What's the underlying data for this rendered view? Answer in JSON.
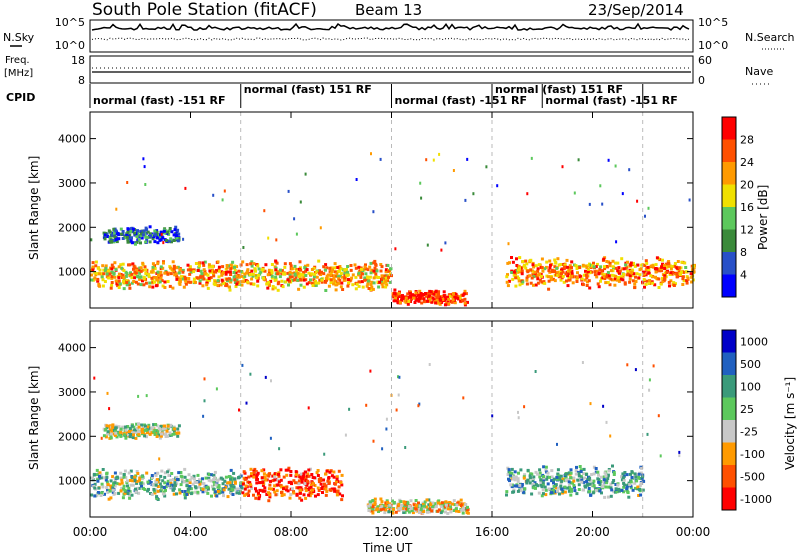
{
  "header": {
    "title": "South Pole Station (fitACF)",
    "beam": "Beam 13",
    "date": "23/Sep/2014"
  },
  "left_labels": {
    "nsky": "N.Sky",
    "freq": "Freq.",
    "mhz": "[MHz]",
    "cpid": "CPID"
  },
  "right_labels": {
    "nsearch": "N.Search",
    "nave": "Nave"
  },
  "noise_axis": {
    "left_ticks": [
      "10^5",
      "10^0"
    ],
    "right_ticks": [
      "10^5",
      "10^0"
    ]
  },
  "freq_axis": {
    "left_ticks": [
      "18",
      "8"
    ],
    "right_ticks": [
      "60",
      "0"
    ]
  },
  "cpid_segments": [
    {
      "label": "normal (fast) -151 RF",
      "start": 0.0,
      "end": 6.0
    },
    {
      "label": "normal (fast) 151 RF",
      "start": 6.0,
      "end": 12.0
    },
    {
      "label": "normal (fast) -151 RF",
      "start": 12.0,
      "end": 16.0
    },
    {
      "label": "normal (fast) 151 RF",
      "start": 16.0,
      "end": 18.0
    },
    {
      "label": "normal (fast) -151 RF",
      "start": 18.0,
      "end": 22.0
    }
  ],
  "x_axis": {
    "label": "Time UT",
    "ticks": [
      "00:00",
      "04:00",
      "08:00",
      "12:00",
      "16:00",
      "20:00",
      "00:00"
    ],
    "tick_hours": [
      0,
      4,
      8,
      12,
      16,
      20,
      24
    ]
  },
  "power_panel": {
    "ylabel": "Slant Range [km]",
    "yticks": [
      "1000",
      "2000",
      "3000",
      "4000"
    ],
    "ytick_values": [
      1000,
      2000,
      3000,
      4000
    ],
    "colorbar_label": "Power [dB]",
    "colorbar_ticks": [
      "4",
      "8",
      "12",
      "16",
      "20",
      "24",
      "28"
    ]
  },
  "velocity_panel": {
    "ylabel": "Slant Range [km]",
    "yticks": [
      "1000",
      "2000",
      "3000",
      "4000"
    ],
    "ytick_values": [
      1000,
      2000,
      3000,
      4000
    ],
    "colorbar_label": "Velocity [m s⁻¹]",
    "colorbar_ticks": [
      "1000",
      "500",
      "100",
      "25",
      "-25",
      "-100",
      "-500",
      "-1000"
    ]
  },
  "chart_data": {
    "type": "heatmap",
    "title": "South Pole Station (fitACF)",
    "xlabel": "Time UT",
    "ylabel": "Slant Range [km]",
    "xlim": [
      0,
      24
    ],
    "ylim": [
      180,
      4600
    ],
    "panels": [
      {
        "quantity": "Power [dB]",
        "clim": [
          0,
          30
        ],
        "colors": [
          "#0000ff",
          "#2850c8",
          "#3a8a3a",
          "#5cc85c",
          "#f0e000",
          "#ff9a00",
          "#ff5000",
          "#ff0000"
        ],
        "bands": [
          {
            "t_start": 0.0,
            "t_end": 12.0,
            "range_center_km": 950,
            "range_width_km": 500,
            "value_db": 20
          },
          {
            "t_start": 12.0,
            "t_end": 15.0,
            "range_center_km": 450,
            "range_width_km": 250,
            "value_db": 26
          },
          {
            "t_start": 16.5,
            "t_end": 24.0,
            "range_center_km": 1000,
            "range_width_km": 550,
            "value_db": 22
          },
          {
            "t_start": 0.5,
            "t_end": 3.5,
            "range_center_km": 1850,
            "range_width_km": 300,
            "value_db": 6
          }
        ]
      },
      {
        "quantity": "Velocity [m s-1]",
        "clim": [
          -1000,
          1000
        ],
        "colors": [
          "#0000c8",
          "#2060c0",
          "#3a9a7a",
          "#5cc85c",
          "#c8c8c8",
          "#ff9a00",
          "#ff5000",
          "#ff0000"
        ],
        "bands": [
          {
            "t_start": 0.0,
            "t_end": 6.0,
            "range_center_km": 950,
            "range_width_km": 500,
            "value_ms": -150
          },
          {
            "t_start": 6.0,
            "t_end": 10.0,
            "range_center_km": 950,
            "range_width_km": 600,
            "value_ms": 700
          },
          {
            "t_start": 11.0,
            "t_end": 15.0,
            "range_center_km": 450,
            "range_width_km": 250,
            "value_ms": 200
          },
          {
            "t_start": 16.5,
            "t_end": 22.0,
            "range_center_km": 1000,
            "range_width_km": 550,
            "value_ms": -200
          },
          {
            "t_start": 0.5,
            "t_end": 3.5,
            "range_center_km": 2150,
            "range_width_km": 250,
            "value_ms": 0
          }
        ]
      }
    ]
  }
}
